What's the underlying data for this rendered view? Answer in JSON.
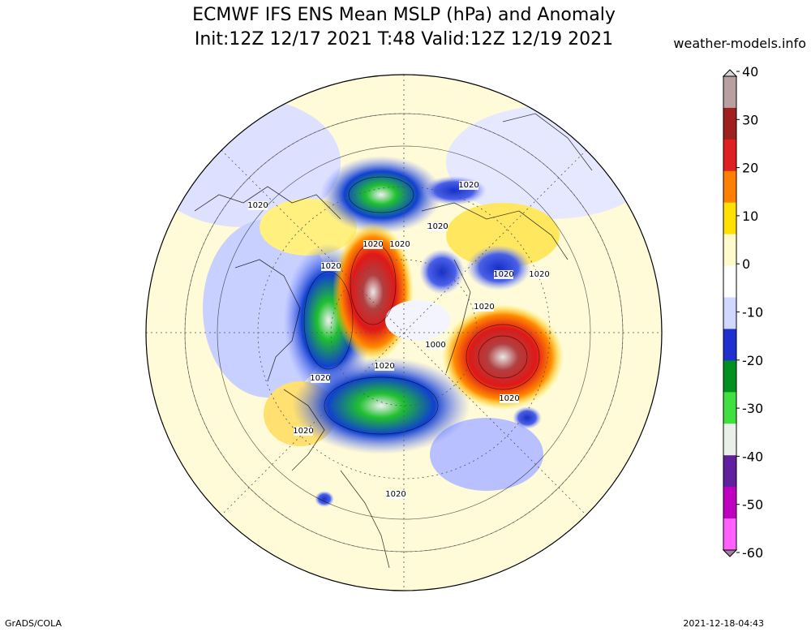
{
  "header": {
    "title_line1": "ECMWF IFS ENS Mean MSLP (hPa) and Anomaly",
    "title_line2": "Init:12Z 12/17 2021  T:48 Valid:12Z 12/19 2021",
    "credit": "weather-models.info"
  },
  "footer": {
    "software": "GrADS/COLA",
    "timestamp": "2021-12-18-04:43"
  },
  "colorbar": {
    "labels": [
      "40",
      "30",
      "20",
      "10",
      "0",
      "-10",
      "-20",
      "-30",
      "-40",
      "-50",
      "-60"
    ],
    "colors": [
      "#b8a0a0",
      "#a02020",
      "#e02020",
      "#ff8000",
      "#ffe000",
      "#fffacc",
      "#ffffff",
      "#d0d8ff",
      "#2030d0",
      "#009020",
      "#40e040",
      "#e8f0e8",
      "#6020a0",
      "#c000c0",
      "#ff60ff"
    ]
  },
  "contour_labels": [
    "1020",
    "1020",
    "1020",
    "1020",
    "1020",
    "1020",
    "1020",
    "1020",
    "1020",
    "1020",
    "1000",
    "1020",
    "1020",
    "1020",
    "1020",
    "1020"
  ]
}
